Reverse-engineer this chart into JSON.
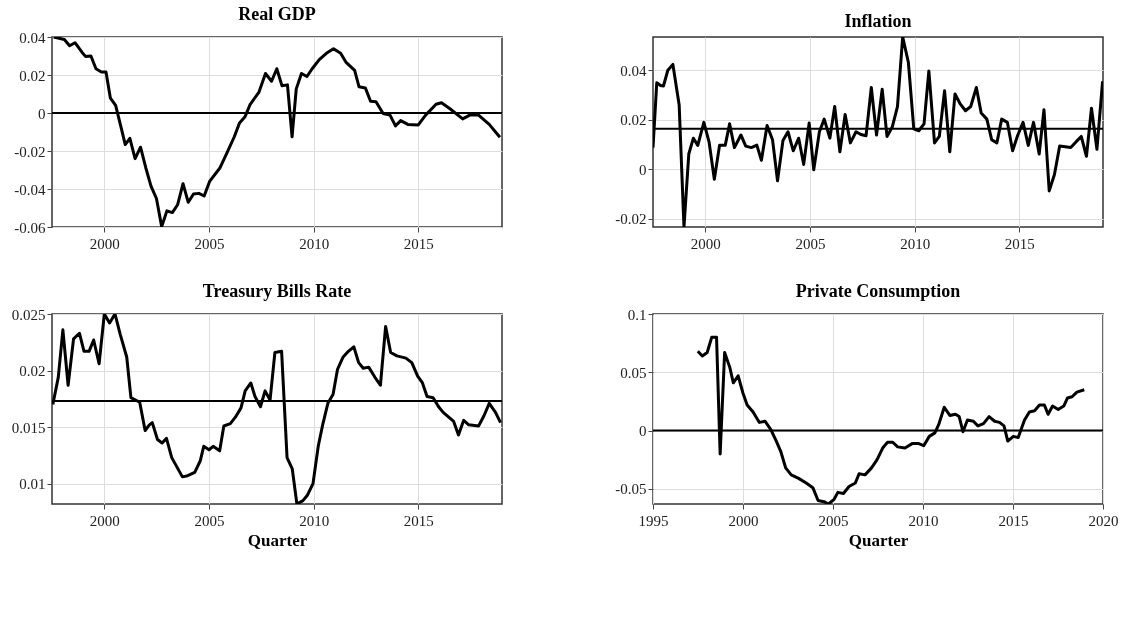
{
  "chart_data": [
    {
      "type": "line",
      "title": "Real GDP",
      "xlim": [
        1997.5,
        2019
      ],
      "xticks": [
        2000,
        2005,
        2010,
        2015
      ],
      "ylim": [
        -0.06,
        0.04
      ],
      "yticks": [
        -0.06,
        -0.04,
        -0.02,
        0,
        0.02,
        0.04
      ],
      "grid": true,
      "line_style": "solid",
      "ref_lines": [
        {
          "axis": "y",
          "value": 0,
          "color": "#000000"
        }
      ],
      "series": [
        {
          "color": "#000000",
          "x": [
            1997.58,
            1998.09,
            1998.34,
            1998.6,
            1998.93,
            1999.1,
            1999.36,
            1999.6,
            1999.86,
            2000.08,
            2000.29,
            2000.54,
            2000.8,
            2001.0,
            2001.22,
            2001.47,
            2001.73,
            2001.98,
            2002.23,
            2002.49,
            2002.74,
            2002.99,
            2003.25,
            2003.5,
            2003.76,
            2004.01,
            2004.26,
            2004.52,
            2004.77,
            2005.03,
            2005.53,
            2005.87,
            2006.21,
            2006.46,
            2006.72,
            2006.97,
            2007.39,
            2007.7,
            2007.99,
            2008.24,
            2008.49,
            2008.75,
            2008.97,
            2009.17,
            2009.42,
            2009.68,
            2009.93,
            2010.27,
            2010.61,
            2010.95,
            2011.29,
            2011.54,
            2011.96,
            2012.17,
            2012.47,
            2012.72,
            2012.98,
            2013.32,
            2013.65,
            2013.91,
            2014.16,
            2014.5,
            2015.0,
            2015.35,
            2015.85,
            2016.11,
            2016.53,
            2017.12,
            2017.46,
            2017.88,
            2018.39,
            2018.9
          ],
          "values": [
            0.04,
            0.0387,
            0.0354,
            0.037,
            0.032,
            0.0298,
            0.03,
            0.0233,
            0.0216,
            0.0216,
            0.0078,
            0.004,
            -0.0076,
            -0.0166,
            -0.0133,
            -0.024,
            -0.018,
            -0.0288,
            -0.0385,
            -0.045,
            -0.0598,
            -0.0515,
            -0.0524,
            -0.0483,
            -0.0372,
            -0.047,
            -0.0426,
            -0.0423,
            -0.0437,
            -0.036,
            -0.0288,
            -0.0207,
            -0.0125,
            -0.0052,
            -0.002,
            0.0046,
            0.011,
            0.0208,
            0.0167,
            0.0233,
            0.0143,
            0.0148,
            -0.0125,
            0.0127,
            0.0208,
            0.0192,
            0.0233,
            0.0281,
            0.0314,
            0.0338,
            0.0314,
            0.0268,
            0.0224,
            0.0138,
            0.0132,
            0.0062,
            0.0059,
            -0.0003,
            -0.0011,
            -0.0068,
            -0.004,
            -0.006,
            -0.0063,
            -0.0011,
            0.0046,
            0.0054,
            0.0021,
            -0.0031,
            -0.0011,
            -0.0011,
            -0.006,
            -0.0128
          ]
        }
      ]
    },
    {
      "type": "line",
      "title": "Inflation",
      "xlim": [
        1997.5,
        2019
      ],
      "xticks": [
        2000,
        2005,
        2010,
        2015
      ],
      "ylim": [
        -0.0234,
        0.0534
      ],
      "yticks": [
        -0.02,
        0,
        0.02,
        0.04
      ],
      "grid": true,
      "line_style": "solid",
      "ref_lines": [
        {
          "axis": "y",
          "value": 0.0163,
          "color": "#000000"
        }
      ],
      "series": [
        {
          "color": "#000000",
          "x": [
            1997.5,
            1997.68,
            1997.86,
            1998.0,
            1998.21,
            1998.45,
            1998.75,
            1998.98,
            1999.21,
            1999.43,
            1999.64,
            1999.93,
            2000.18,
            2000.43,
            2000.68,
            2000.95,
            2001.16,
            2001.39,
            2001.7,
            2001.93,
            2002.2,
            2002.46,
            2002.68,
            2002.95,
            2003.21,
            2003.45,
            2003.71,
            2003.95,
            2004.2,
            2004.46,
            2004.7,
            2004.96,
            2005.18,
            2005.45,
            2005.68,
            2005.95,
            2006.18,
            2006.43,
            2006.68,
            2006.93,
            2007.2,
            2007.43,
            2007.68,
            2007.93,
            2008.18,
            2008.45,
            2008.68,
            2008.93,
            2009.18,
            2009.43,
            2009.7,
            2009.96,
            2010.2,
            2010.45,
            2010.68,
            2010.95,
            2011.18,
            2011.43,
            2011.68,
            2011.93,
            2012.16,
            2012.43,
            2012.68,
            2012.95,
            2013.18,
            2013.45,
            2013.68,
            2013.93,
            2014.16,
            2014.43,
            2014.68,
            2014.93,
            2015.18,
            2015.43,
            2015.68,
            2015.95,
            2016.18,
            2016.43,
            2016.68,
            2016.93,
            2017.46,
            2017.73,
            2017.96,
            2018.21,
            2018.45,
            2018.71,
            2018.98
          ],
          "values": [
            0.0087,
            0.0349,
            0.0338,
            0.0336,
            0.04,
            0.0423,
            0.0259,
            -0.0234,
            0.0061,
            0.0125,
            0.0096,
            0.0189,
            0.0109,
            -0.0041,
            0.0096,
            0.0096,
            0.0183,
            0.0087,
            0.0138,
            0.0093,
            0.0087,
            0.0097,
            0.0036,
            0.0176,
            0.0119,
            -0.0047,
            0.0116,
            0.0151,
            0.0074,
            0.0125,
            0.0019,
            0.0186,
            -0.0003,
            0.0151,
            0.0202,
            0.0125,
            0.0253,
            0.007,
            0.0221,
            0.0106,
            0.0151,
            0.014,
            0.0135,
            0.033,
            0.0138,
            0.0323,
            0.0132,
            0.017,
            0.0253,
            0.0534,
            0.0432,
            0.0163,
            0.0155,
            0.0183,
            0.0397,
            0.0106,
            0.0132,
            0.0317,
            0.007,
            0.0304,
            0.0266,
            0.0236,
            0.0253,
            0.033,
            0.0227,
            0.0202,
            0.0119,
            0.0106,
            0.0202,
            0.0189,
            0.0074,
            0.0138,
            0.0189,
            0.0096,
            0.0189,
            0.0061,
            0.024,
            -0.0088,
            -0.0022,
            0.0093,
            0.0087,
            0.0112,
            0.0132,
            0.0052,
            0.0246,
            0.008,
            0.0355
          ]
        }
      ]
    },
    {
      "type": "line",
      "title": "Treasury Bills Rate",
      "xlabel": "Quarter",
      "xlim": [
        1997.5,
        2019
      ],
      "xticks": [
        2000,
        2005,
        2010,
        2015
      ],
      "ylim": [
        0.0082,
        0.025
      ],
      "yticks": [
        0.01,
        0.015,
        0.02,
        0.025
      ],
      "grid": true,
      "line_style": "solid",
      "ref_lines": [
        {
          "axis": "y",
          "value": 0.0173,
          "color": "#000000"
        }
      ],
      "series": [
        {
          "color": "#000000",
          "x": [
            1997.54,
            1997.8,
            1998.02,
            1998.27,
            1998.53,
            1998.81,
            1999.03,
            1999.27,
            1999.49,
            1999.75,
            2000.0,
            2000.25,
            2000.51,
            2000.76,
            2001.07,
            2001.27,
            2001.69,
            2001.95,
            2002.15,
            2002.29,
            2002.54,
            2002.76,
            2002.97,
            2003.22,
            2003.73,
            2003.98,
            2004.32,
            2004.58,
            2004.75,
            2005.0,
            2005.2,
            2005.51,
            2005.71,
            2006.02,
            2006.27,
            2006.53,
            2006.73,
            2007.0,
            2007.2,
            2007.46,
            2007.68,
            2007.92,
            2008.15,
            2008.47,
            2008.73,
            2008.98,
            2009.2,
            2009.49,
            2009.71,
            2009.97,
            2010.22,
            2010.42,
            2010.68,
            2010.93,
            2011.14,
            2011.41,
            2011.66,
            2011.92,
            2012.15,
            2012.37,
            2012.63,
            2012.93,
            2013.19,
            2013.44,
            2013.68,
            2013.98,
            2014.41,
            2014.69,
            2014.97,
            2015.2,
            2015.42,
            2015.71,
            2015.97,
            2016.19,
            2016.44,
            2016.69,
            2016.92,
            2017.17,
            2017.41,
            2017.88,
            2018.14,
            2018.39,
            2018.69,
            2018.93
          ],
          "values": [
            0.017,
            0.0194,
            0.0236,
            0.0187,
            0.0228,
            0.0233,
            0.0217,
            0.0217,
            0.0227,
            0.0206,
            0.025,
            0.0242,
            0.025,
            0.0232,
            0.0212,
            0.0176,
            0.0172,
            0.0147,
            0.0152,
            0.0154,
            0.0139,
            0.0136,
            0.014,
            0.0123,
            0.0106,
            0.0107,
            0.011,
            0.012,
            0.0133,
            0.013,
            0.0133,
            0.0129,
            0.0151,
            0.0153,
            0.0159,
            0.0167,
            0.0182,
            0.0189,
            0.0177,
            0.0168,
            0.0182,
            0.0174,
            0.0216,
            0.0217,
            0.0123,
            0.0113,
            0.0082,
            0.0085,
            0.009,
            0.01,
            0.0133,
            0.0151,
            0.0171,
            0.0179,
            0.0201,
            0.0212,
            0.0217,
            0.0221,
            0.0207,
            0.0202,
            0.0203,
            0.0194,
            0.0187,
            0.0239,
            0.0216,
            0.0213,
            0.0211,
            0.0207,
            0.0195,
            0.0189,
            0.0177,
            0.0176,
            0.0168,
            0.0163,
            0.0159,
            0.0155,
            0.0143,
            0.0156,
            0.0152,
            0.0151,
            0.016,
            0.0171,
            0.0163,
            0.0154
          ]
        }
      ]
    },
    {
      "type": "line",
      "title": "Private Consumption",
      "xlabel": "Quarter",
      "xlim": [
        1995,
        2020
      ],
      "xticks": [
        1995,
        2000,
        2005,
        2010,
        2015,
        2020
      ],
      "ylim": [
        -0.063,
        0.1
      ],
      "yticks": [
        -0.05,
        0,
        0.05,
        0.1
      ],
      "grid": true,
      "line_style": "solid",
      "ref_lines": [
        {
          "axis": "y",
          "value": 0,
          "color": "#000000"
        }
      ],
      "series": [
        {
          "color": "#000000",
          "x": [
            1997.49,
            1997.74,
            1998.01,
            1998.26,
            1998.53,
            1998.73,
            1998.98,
            1999.27,
            1999.46,
            1999.73,
            2000.0,
            2000.23,
            2000.56,
            2000.91,
            2001.22,
            2001.54,
            2001.85,
            2002.1,
            2002.37,
            2002.68,
            2003.09,
            2003.51,
            2003.88,
            2004.17,
            2004.5,
            2004.75,
            2005.06,
            2005.27,
            2005.58,
            2005.89,
            2006.24,
            2006.45,
            2006.78,
            2007.14,
            2007.45,
            2007.76,
            2008.03,
            2008.32,
            2008.59,
            2009.0,
            2009.42,
            2009.73,
            2010.04,
            2010.35,
            2010.66,
            2010.87,
            2011.18,
            2011.49,
            2011.8,
            2012.01,
            2012.22,
            2012.47,
            2012.8,
            2013.05,
            2013.36,
            2013.67,
            2013.98,
            2014.25,
            2014.5,
            2014.71,
            2015.02,
            2015.29,
            2015.64,
            2015.91,
            2016.2,
            2016.47,
            2016.74,
            2016.95,
            2017.2,
            2017.51,
            2017.82,
            2018.03,
            2018.28,
            2018.55,
            2018.96
          ],
          "values": [
            0.068,
            0.064,
            0.067,
            0.08,
            0.08,
            -0.02,
            0.067,
            0.054,
            0.041,
            0.047,
            0.032,
            0.022,
            0.016,
            0.007,
            0.008,
            0.001,
            -0.009,
            -0.018,
            -0.032,
            -0.038,
            -0.041,
            -0.045,
            -0.049,
            -0.06,
            -0.061,
            -0.063,
            -0.059,
            -0.053,
            -0.054,
            -0.048,
            -0.045,
            -0.037,
            -0.038,
            -0.032,
            -0.025,
            -0.015,
            -0.01,
            -0.01,
            -0.014,
            -0.015,
            -0.011,
            -0.011,
            -0.013,
            -0.005,
            -0.002,
            0.005,
            0.02,
            0.013,
            0.014,
            0.012,
            -0.001,
            0.009,
            0.008,
            0.004,
            0.006,
            0.012,
            0.008,
            0.007,
            0.004,
            -0.009,
            -0.005,
            -0.006,
            0.009,
            0.016,
            0.017,
            0.022,
            0.022,
            0.014,
            0.021,
            0.018,
            0.021,
            0.028,
            0.029,
            0.033,
            0.035
          ]
        }
      ]
    }
  ]
}
